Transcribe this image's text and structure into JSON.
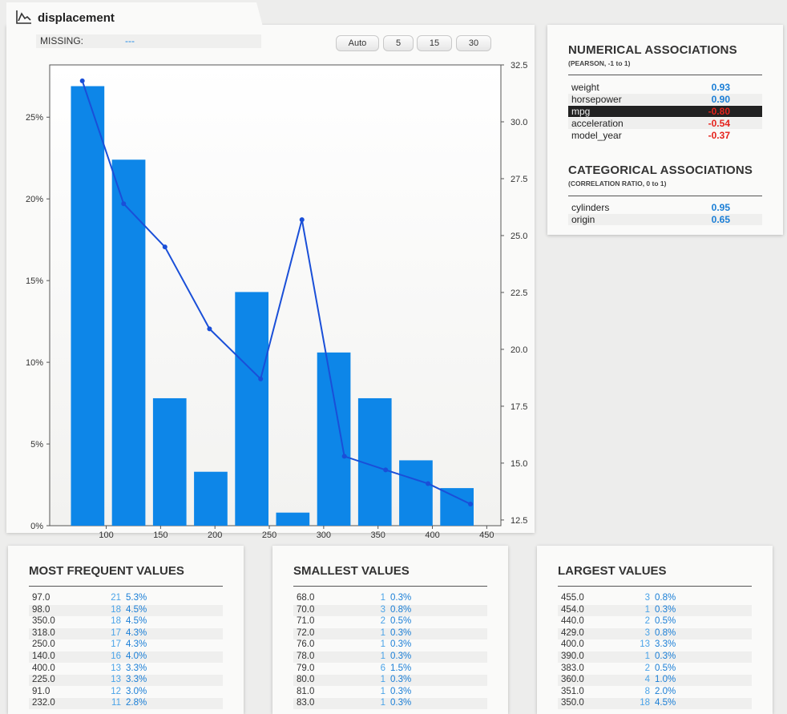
{
  "header": {
    "title": "displacement",
    "missing_label": "MISSING:",
    "missing_value": "---"
  },
  "bin_buttons": [
    "Auto",
    "5",
    "15",
    "30"
  ],
  "chart_data": {
    "type": "bar",
    "x_ticks": [
      100,
      150,
      200,
      250,
      300,
      350,
      400,
      450
    ],
    "y_left_ticks": [
      "0%",
      "5%",
      "10%",
      "15%",
      "20%",
      "25%"
    ],
    "y_right_ticks": [
      "12.5",
      "15.0",
      "17.5",
      "20.0",
      "22.5",
      "25.0",
      "27.5",
      "30.0",
      "32.5"
    ],
    "xlim": [
      48,
      463
    ],
    "ylim_left": [
      0,
      28.2
    ],
    "ylim_right": [
      12.25,
      32.5
    ],
    "bars": [
      {
        "x0": 68,
        "x1": 116.6,
        "value": 26.9
      },
      {
        "x0": 116.6,
        "x1": 165.2,
        "value": 22.4
      },
      {
        "x0": 165.2,
        "x1": 213.8,
        "value": 7.8
      },
      {
        "x0": 213.8,
        "x1": 262.4,
        "value": 3.3
      },
      {
        "x0": 262.4,
        "x1": 311,
        "value": 14.3
      },
      {
        "x0": 311,
        "x1": 359.6,
        "value": 0.8
      },
      {
        "x0": 359.6,
        "x1": 408.2,
        "value": 10.6
      },
      {
        "x0": 408.2,
        "x1": 456.8,
        "value": 7.8
      },
      {
        "x0": 456.8,
        "x1": 505.4,
        "value": 4.0
      },
      {
        "x0": 505.4,
        "x1": 554,
        "value": 2.3
      }
    ],
    "line": {
      "x": [
        78,
        116,
        154,
        195,
        242,
        280,
        319,
        357,
        396,
        435
      ],
      "y": [
        31.8,
        26.4,
        24.5,
        20.9,
        18.7,
        25.7,
        15.3,
        14.7,
        14.1,
        13.2
      ]
    },
    "bar_color": "#0d86e8",
    "line_color": "#1a4fd8"
  },
  "associations": {
    "numerical_title": "NUMERICAL ASSOCIATIONS",
    "numerical_sub": "(PEARSON, -1 to 1)",
    "numerical": [
      {
        "name": "weight",
        "value": "0.93",
        "color": "#1a7ed6"
      },
      {
        "name": "horsepower",
        "value": "0.90",
        "color": "#1a7ed6"
      },
      {
        "name": "mpg",
        "value": "-0.80",
        "color": "#e5221c"
      },
      {
        "name": "acceleration",
        "value": "-0.54",
        "color": "#e5221c"
      },
      {
        "name": "model_year",
        "value": "-0.37",
        "color": "#e5221c"
      }
    ],
    "categorical_title": "CATEGORICAL ASSOCIATIONS",
    "categorical_sub": "(CORRELATION RATIO, 0 to 1)",
    "categorical": [
      {
        "name": "cylinders",
        "value": "0.95",
        "color": "#1a7ed6"
      },
      {
        "name": "origin",
        "value": "0.65",
        "color": "#1a7ed6"
      }
    ]
  },
  "tables": [
    {
      "title": "MOST FREQUENT VALUES",
      "rows": [
        {
          "value": "97.0",
          "count": "21",
          "pct": "5.3%"
        },
        {
          "value": "98.0",
          "count": "18",
          "pct": "4.5%"
        },
        {
          "value": "350.0",
          "count": "18",
          "pct": "4.5%"
        },
        {
          "value": "318.0",
          "count": "17",
          "pct": "4.3%"
        },
        {
          "value": "250.0",
          "count": "17",
          "pct": "4.3%"
        },
        {
          "value": "140.0",
          "count": "16",
          "pct": "4.0%"
        },
        {
          "value": "400.0",
          "count": "13",
          "pct": "3.3%"
        },
        {
          "value": "225.0",
          "count": "13",
          "pct": "3.3%"
        },
        {
          "value": "91.0",
          "count": "12",
          "pct": "3.0%"
        },
        {
          "value": "232.0",
          "count": "11",
          "pct": "2.8%"
        }
      ]
    },
    {
      "title": "SMALLEST VALUES",
      "rows": [
        {
          "value": "68.0",
          "count": "1",
          "pct": "0.3%"
        },
        {
          "value": "70.0",
          "count": "3",
          "pct": "0.8%"
        },
        {
          "value": "71.0",
          "count": "2",
          "pct": "0.5%"
        },
        {
          "value": "72.0",
          "count": "1",
          "pct": "0.3%"
        },
        {
          "value": "76.0",
          "count": "1",
          "pct": "0.3%"
        },
        {
          "value": "78.0",
          "count": "1",
          "pct": "0.3%"
        },
        {
          "value": "79.0",
          "count": "6",
          "pct": "1.5%"
        },
        {
          "value": "80.0",
          "count": "1",
          "pct": "0.3%"
        },
        {
          "value": "81.0",
          "count": "1",
          "pct": "0.3%"
        },
        {
          "value": "83.0",
          "count": "1",
          "pct": "0.3%"
        }
      ]
    },
    {
      "title": "LARGEST VALUES",
      "rows": [
        {
          "value": "455.0",
          "count": "3",
          "pct": "0.8%"
        },
        {
          "value": "454.0",
          "count": "1",
          "pct": "0.3%"
        },
        {
          "value": "440.0",
          "count": "2",
          "pct": "0.5%"
        },
        {
          "value": "429.0",
          "count": "3",
          "pct": "0.8%"
        },
        {
          "value": "400.0",
          "count": "13",
          "pct": "3.3%"
        },
        {
          "value": "390.0",
          "count": "1",
          "pct": "0.3%"
        },
        {
          "value": "383.0",
          "count": "2",
          "pct": "0.5%"
        },
        {
          "value": "360.0",
          "count": "4",
          "pct": "1.0%"
        },
        {
          "value": "351.0",
          "count": "8",
          "pct": "2.0%"
        },
        {
          "value": "350.0",
          "count": "18",
          "pct": "4.5%"
        }
      ]
    }
  ]
}
